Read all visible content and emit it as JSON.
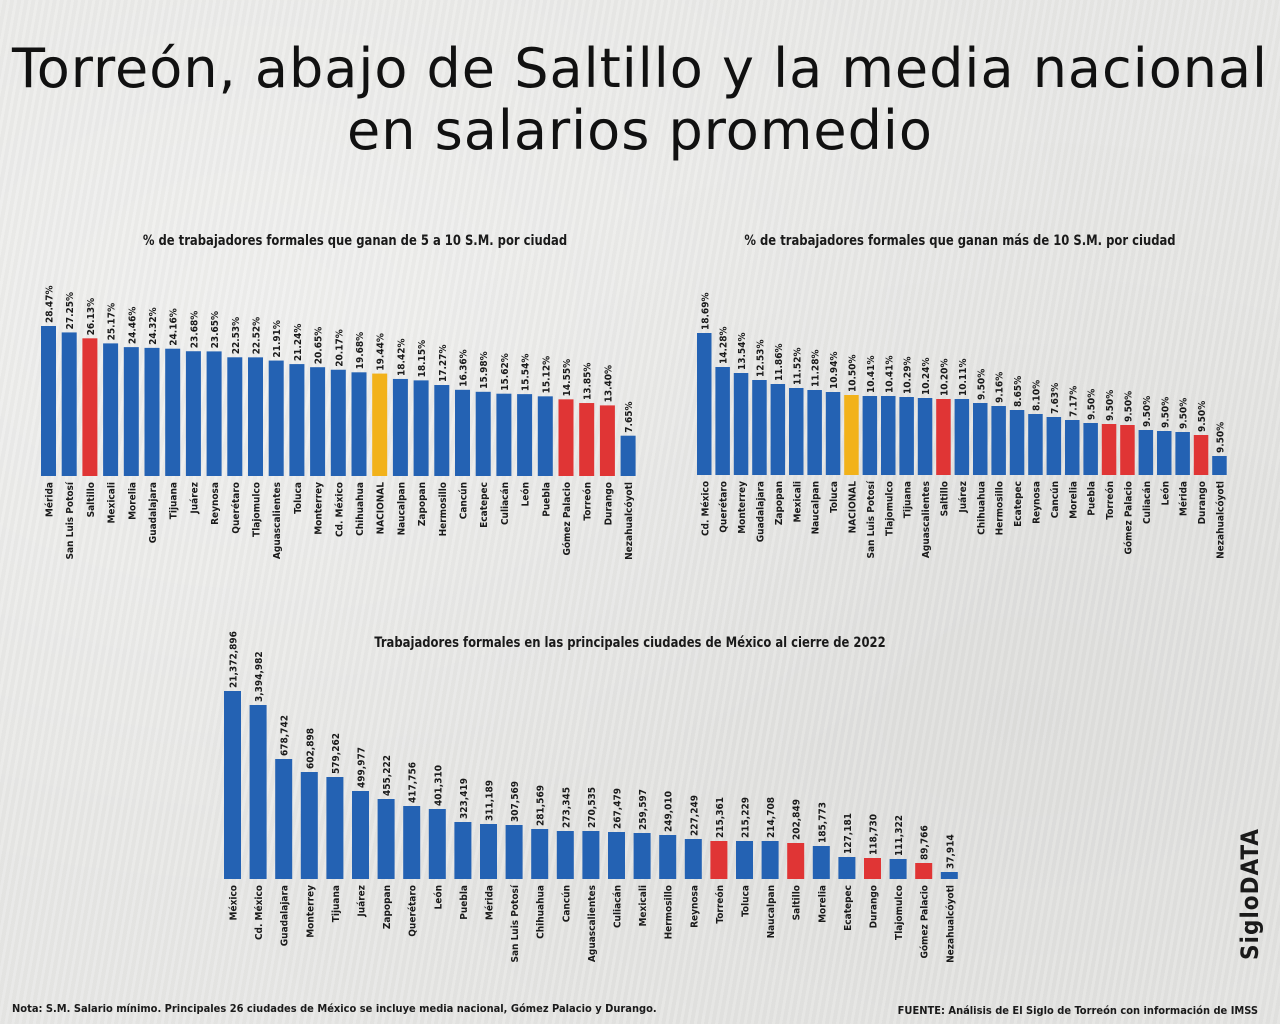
{
  "title": "Torreón, abajo de Saltillo y la media nacional en salarios promedio",
  "brand": "SigloDATA",
  "note": "Nota: S.M. Salario mínimo. Principales 26 ciudades de México se incluye media nacional, Gómez Palacio y Durango.",
  "source": "FUENTE: Análisis de El Siglo de Torreón con información de IMSS",
  "colors": {
    "blue": "#2462b3",
    "red": "#e03535",
    "yellow": "#f2b21a",
    "text": "#1a1a1a"
  },
  "chart_data": [
    {
      "type": "bar",
      "title": "% de trabajadores formales que ganan de 5 a 10 S.M. por ciudad",
      "categories": [
        "Mérida",
        "San Luis Potosí",
        "Saltillo",
        "Mexicali",
        "Morelia",
        "Guadalajara",
        "Tijuana",
        "Juárez",
        "Reynosa",
        "Querétaro",
        "Tlajomulco",
        "Aguascalientes",
        "Toluca",
        "Monterrey",
        "Cd. México",
        "Chihuahua",
        "NACIONAL",
        "Naucalpan",
        "Zapopan",
        "Hermosillo",
        "Cancún",
        "Ecatepec",
        "Culiacán",
        "León",
        "Puebla",
        "Gómez Palacio",
        "Torreón",
        "Durango",
        "Nezahualcóyotl"
      ],
      "values": [
        28.47,
        27.25,
        26.13,
        25.17,
        24.46,
        24.32,
        24.16,
        23.68,
        23.65,
        22.53,
        22.52,
        21.91,
        21.24,
        20.65,
        20.17,
        19.68,
        19.44,
        18.42,
        18.15,
        17.27,
        16.36,
        15.98,
        15.62,
        15.54,
        15.12,
        14.55,
        13.85,
        13.4,
        7.65
      ],
      "labels": [
        "28.47%",
        "27.25%",
        "26.13%",
        "25.17%",
        "24.46%",
        "24.32%",
        "24.16%",
        "23.68%",
        "23.65%",
        "22.53%",
        "22.52%",
        "21.91%",
        "21.24%",
        "20.65%",
        "20.17%",
        "19.68%",
        "19.44%",
        "18.42%",
        "18.15%",
        "17.27%",
        "16.36%",
        "15.98%",
        "15.62%",
        "15.54%",
        "15.12%",
        "14.55%",
        "13.85%",
        "13.40%",
        "7.65%"
      ],
      "bar_colors": [
        "blue",
        "blue",
        "red",
        "blue",
        "blue",
        "blue",
        "blue",
        "blue",
        "blue",
        "blue",
        "blue",
        "blue",
        "blue",
        "blue",
        "blue",
        "blue",
        "yellow",
        "blue",
        "blue",
        "blue",
        "blue",
        "blue",
        "blue",
        "blue",
        "blue",
        "red",
        "red",
        "red",
        "blue"
      ]
    },
    {
      "type": "bar",
      "title": "% de trabajadores formales que ganan más de 10 S.M. por ciudad",
      "categories": [
        "Cd. México",
        "Querétaro",
        "Monterrey",
        "Guadalajara",
        "Zapopan",
        "Mexicali",
        "Naucalpan",
        "Toluca",
        "NACIONAL",
        "San Luis Potosí",
        "Tlajomulco",
        "Tijuana",
        "Aguascalientes",
        "Saltillo",
        "Juárez",
        "Chihuahua",
        "Hermosillo",
        "Ecatepec",
        "Reynosa",
        "Cancún",
        "Morelia",
        "Puebla",
        "Torreón",
        "Gómez Palacio",
        "Culiacán",
        "León",
        "Mérida",
        "Durango",
        "Nezahualcóyotl"
      ],
      "values": [
        18.69,
        14.28,
        13.54,
        12.53,
        11.86,
        11.52,
        11.28,
        10.94,
        10.5,
        10.41,
        10.41,
        10.29,
        10.24,
        10.2,
        10.11,
        9.5,
        9.16,
        8.65,
        8.1,
        7.63,
        7.17,
        9.5,
        9.5,
        9.5,
        9.5,
        9.5,
        9.5,
        9.5,
        9.5
      ],
      "labels": [
        "18.69%",
        "14.28%",
        "13.54%",
        "12.53%",
        "11.86%",
        "11.52%",
        "11.28%",
        "10.94%",
        "10.50%",
        "10.41%",
        "10.41%",
        "10.29%",
        "10.24%",
        "10.20%",
        "10.11%",
        "9.50%",
        "9.16%",
        "8.65%",
        "8.10%",
        "7.63%",
        "7.17%",
        "9.50%",
        "9.50%",
        "9.50%",
        "9.50%",
        "9.50%",
        "9.50%",
        "9.50%",
        "9.50%"
      ],
      "bar_colors": [
        "blue",
        "blue",
        "blue",
        "blue",
        "blue",
        "blue",
        "blue",
        "blue",
        "yellow",
        "blue",
        "blue",
        "blue",
        "blue",
        "red",
        "blue",
        "blue",
        "blue",
        "blue",
        "blue",
        "blue",
        "blue",
        "blue",
        "red",
        "red",
        "blue",
        "blue",
        "blue",
        "red",
        "blue"
      ]
    },
    {
      "type": "bar",
      "title": "Trabajadores formales en las principales ciudades de México al cierre de 2022",
      "categories": [
        "México",
        "Cd. México",
        "Guadalajara",
        "Monterrey",
        "Tijuana",
        "Juárez",
        "Zapopan",
        "Querétaro",
        "León",
        "Puebla",
        "Mérida",
        "San Luis Potosí",
        "Chihuahua",
        "Cancún",
        "Aguascalientes",
        "Culiacán",
        "Mexicali",
        "Hermosillo",
        "Reynosa",
        "Torreón",
        "Toluca",
        "Naucalpan",
        "Saltillo",
        "Morelia",
        "Ecatepec",
        "Durango",
        "Tlajomulco",
        "Gómez Palacio",
        "Nezahualcóyotl"
      ],
      "values": [
        21372896,
        3394982,
        678742,
        602898,
        579262,
        499977,
        455222,
        417756,
        401310,
        323419,
        311189,
        307569,
        281569,
        273345,
        270535,
        267479,
        259597,
        249010,
        227249,
        215361,
        215229,
        214708,
        202849,
        185773,
        127181,
        118730,
        111322,
        89766,
        37914
      ],
      "labels": [
        "21,372,896",
        "3,394,982",
        "678,742",
        "602,898",
        "579,262",
        "499,977",
        "455,222",
        "417,756",
        "401,310",
        "323,419",
        "311,189",
        "307,569",
        "281,569",
        "273,345",
        "270,535",
        "267,479",
        "259,597",
        "249,010",
        "227,249",
        "215,361",
        "215,229",
        "214,708",
        "202,849",
        "185,773",
        "127,181",
        "118,730",
        "111,322",
        "89,766",
        "37,914"
      ],
      "bar_colors": [
        "blue",
        "blue",
        "blue",
        "blue",
        "blue",
        "blue",
        "blue",
        "blue",
        "blue",
        "blue",
        "blue",
        "blue",
        "blue",
        "blue",
        "blue",
        "blue",
        "blue",
        "blue",
        "blue",
        "red",
        "blue",
        "blue",
        "red",
        "blue",
        "blue",
        "red",
        "blue",
        "red",
        "blue"
      ]
    }
  ]
}
